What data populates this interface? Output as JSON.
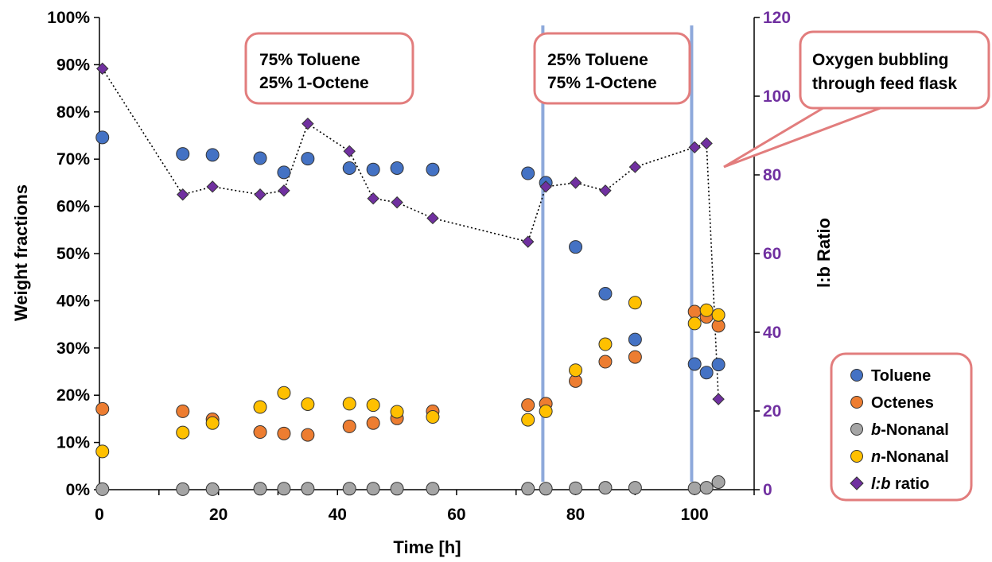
{
  "colors": {
    "toluene": "#4472C4",
    "octenes": "#ED7D31",
    "b_nonanal": "#A5A5A5",
    "n_nonanal": "#FFC000",
    "lb_ratio": "#7030A0",
    "right_axis": "#7030A0",
    "annotation_border": "#E27D7D",
    "vline": "#8EA9DB"
  },
  "annotations": {
    "box1_line1": "75% Toluene",
    "box1_line2": "25% 1-Octene",
    "box2_line1": "25% Toluene",
    "box2_line2": "75% 1-Octene",
    "box3_line1": "Oxygen bubbling",
    "box3_line2": "through feed flask"
  },
  "legend": {
    "placement": "bottom-right",
    "items": [
      {
        "key": "toluene",
        "label": "Toluene",
        "marker": "circle"
      },
      {
        "key": "octenes",
        "label": "Octenes",
        "marker": "circle"
      },
      {
        "key": "b_nonanal",
        "label_italic": "b",
        "label_rest": "-Nonanal",
        "marker": "circle"
      },
      {
        "key": "n_nonanal",
        "label_italic": "n",
        "label_rest": "-Nonanal",
        "marker": "circle"
      },
      {
        "key": "lb_ratio",
        "label_italic": "l:b",
        "label_rest": " ratio",
        "marker": "diamond"
      }
    ]
  },
  "chart_data": {
    "type": "scatter",
    "xlabel": "Time [h]",
    "ylabel": "Weight fractions",
    "y2label": "l:b Ratio",
    "xlim": [
      0,
      110
    ],
    "ylim": [
      0,
      1
    ],
    "y2lim": [
      0,
      120
    ],
    "x_ticks": [
      0,
      20,
      40,
      60,
      80,
      100
    ],
    "y_ticks": [
      "0%",
      "10%",
      "20%",
      "30%",
      "40%",
      "50%",
      "60%",
      "70%",
      "80%",
      "90%",
      "100%"
    ],
    "y2_ticks": [
      0,
      20,
      40,
      60,
      80,
      100,
      120
    ],
    "grid": false,
    "vertical_lines_x": [
      74.5,
      99.5
    ],
    "series": [
      {
        "key": "toluene",
        "name": "Toluene",
        "axis": "left",
        "x": [
          0.5,
          14,
          19,
          27,
          31,
          35,
          42,
          46,
          50,
          56,
          72,
          75,
          80,
          85,
          90,
          100,
          102,
          104
        ],
        "y": [
          0.746,
          0.711,
          0.709,
          0.702,
          0.672,
          0.701,
          0.681,
          0.678,
          0.681,
          0.678,
          0.67,
          0.65,
          0.514,
          0.415,
          0.318,
          0.266,
          0.248,
          0.265
        ]
      },
      {
        "key": "octenes",
        "name": "Octenes",
        "axis": "left",
        "x": [
          0.5,
          14,
          19,
          27,
          31,
          35,
          42,
          46,
          50,
          56,
          72,
          75,
          80,
          85,
          90,
          100,
          102,
          104
        ],
        "y": [
          0.171,
          0.166,
          0.149,
          0.122,
          0.119,
          0.116,
          0.134,
          0.141,
          0.151,
          0.166,
          0.179,
          0.182,
          0.23,
          0.271,
          0.281,
          0.377,
          0.366,
          0.347
        ]
      },
      {
        "key": "b_nonanal",
        "name": "b-Nonanal",
        "axis": "left",
        "x": [
          0.5,
          14,
          19,
          27,
          31,
          35,
          42,
          46,
          50,
          56,
          72,
          75,
          80,
          85,
          90,
          100,
          102,
          104
        ],
        "y": [
          0.001,
          0.001,
          0.001,
          0.002,
          0.002,
          0.002,
          0.002,
          0.002,
          0.002,
          0.002,
          0.002,
          0.002,
          0.003,
          0.004,
          0.004,
          0.003,
          0.004,
          0.016
        ]
      },
      {
        "key": "n_nonanal",
        "name": "n-Nonanal",
        "axis": "left",
        "x": [
          0.5,
          14,
          19,
          27,
          31,
          35,
          42,
          46,
          50,
          56,
          72,
          75,
          80,
          85,
          90,
          100,
          102,
          104
        ],
        "y": [
          0.081,
          0.121,
          0.141,
          0.175,
          0.205,
          0.181,
          0.182,
          0.179,
          0.165,
          0.154,
          0.148,
          0.166,
          0.253,
          0.308,
          0.396,
          0.352,
          0.38,
          0.37
        ]
      },
      {
        "key": "lb_ratio",
        "name": "l:b ratio",
        "axis": "right",
        "connected": true,
        "line_style": "dotted",
        "x": [
          0.5,
          14,
          19,
          27,
          31,
          35,
          42,
          46,
          50,
          56,
          72,
          75,
          80,
          85,
          90,
          100,
          102,
          104
        ],
        "y": [
          107,
          75,
          77,
          75,
          76,
          93,
          86,
          74,
          73,
          69,
          63,
          77,
          78,
          76,
          82,
          87,
          88,
          23
        ]
      }
    ]
  }
}
